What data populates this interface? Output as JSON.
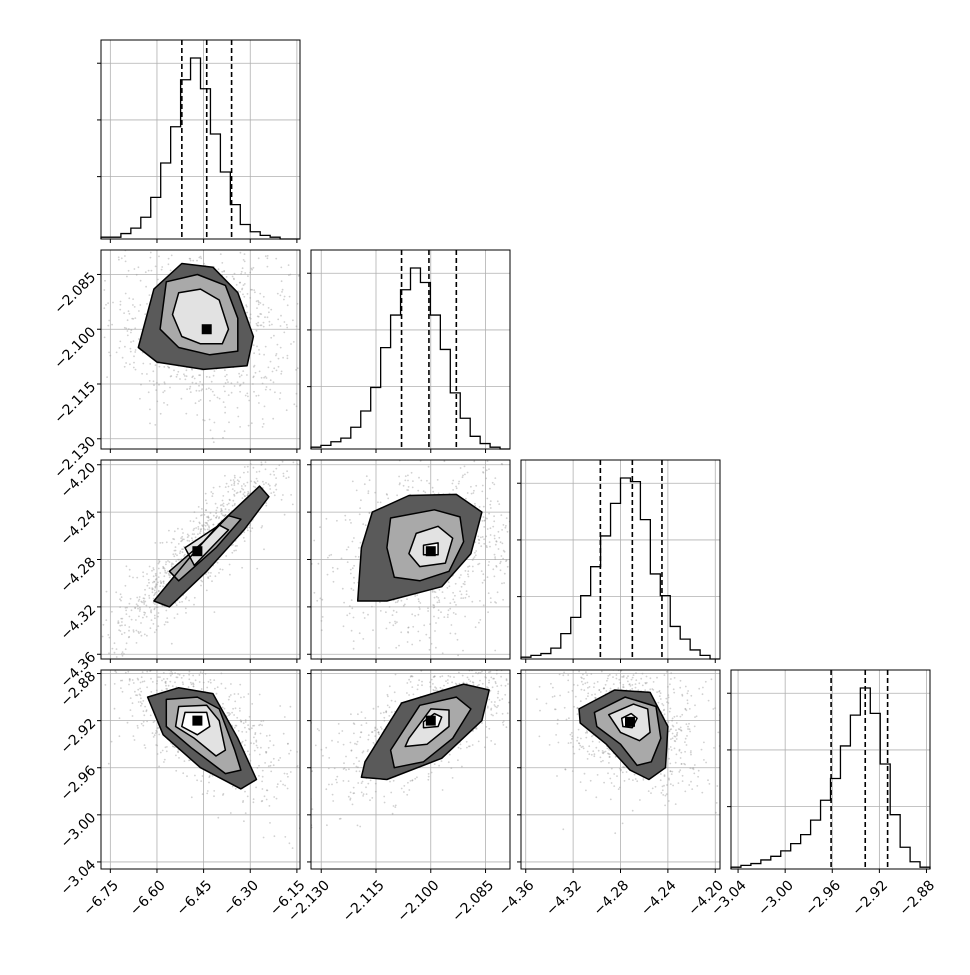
{
  "chart_data": {
    "type": "corner",
    "parameters": [
      {
        "range": [
          -6.78,
          -6.14
        ],
        "ticks": [
          "−6.75",
          "−6.60",
          "−6.45",
          "−6.30",
          "−6.15"
        ],
        "tick_values": [
          -6.75,
          -6.6,
          -6.45,
          -6.3,
          -6.15
        ],
        "quantiles": [
          -6.52,
          -6.44,
          -6.36
        ],
        "histogram": {
          "edges_start": -6.78,
          "bin_width": 0.032,
          "counts": [
            1,
            1,
            3,
            6,
            12,
            23,
            42,
            62,
            88,
            100,
            83,
            58,
            37,
            19,
            8,
            4,
            2,
            1,
            0,
            0
          ]
        }
      },
      {
        "range": [
          -2.1328,
          -2.0783
        ],
        "ticks": [
          "−2.130",
          "−2.115",
          "−2.100",
          "−2.085"
        ],
        "tick_values": [
          -2.13,
          -2.115,
          -2.1,
          -2.085
        ],
        "quantiles": [
          -2.108,
          -2.1005,
          -2.093
        ],
        "histogram": {
          "edges_start": -2.1328,
          "bin_width": 0.002725,
          "counts": [
            1,
            2,
            4,
            6,
            12,
            21,
            34,
            56,
            74,
            88,
            100,
            92,
            74,
            55,
            31,
            17,
            7,
            3,
            1,
            0
          ]
        }
      },
      {
        "range": [
          -4.364,
          -4.196
        ],
        "ticks": [
          "−4.36",
          "−4.32",
          "−4.28",
          "−4.24",
          "−4.20"
        ],
        "tick_values": [
          -4.36,
          -4.32,
          -4.28,
          -4.24,
          -4.2
        ],
        "quantiles": [
          -4.297,
          -4.27,
          -4.245
        ],
        "histogram": {
          "edges_start": -4.364,
          "bin_width": 0.0084,
          "counts": [
            1,
            2,
            3,
            6,
            14,
            23,
            35,
            51,
            68,
            86,
            100,
            98,
            77,
            47,
            35,
            18,
            11,
            5,
            2,
            0
          ]
        }
      },
      {
        "range": [
          -3.046,
          -2.877
        ],
        "ticks": [
          "−3.04",
          "−3.00",
          "−2.96",
          "−2.92",
          "−2.88"
        ],
        "tick_values": [
          -3.04,
          -3.0,
          -2.96,
          -2.92,
          -2.88
        ],
        "quantiles": [
          -2.961,
          -2.932,
          -2.913
        ],
        "histogram": {
          "edges_start": -3.046,
          "bin_width": 0.00845,
          "counts": [
            1,
            2,
            3,
            5,
            7,
            10,
            14,
            19,
            27,
            38,
            50,
            68,
            85,
            100,
            86,
            58,
            30,
            12,
            4,
            1
          ]
        }
      }
    ],
    "pairs": [
      {
        "row": 1,
        "col": 0,
        "mean": [
          -6.44,
          -2.1
        ],
        "contours": [
          [
            -6.53,
            -2.09,
            -6.46,
            -2.089,
            -6.4,
            -2.092,
            -6.37,
            -2.1,
            -6.39,
            -2.104,
            -6.46,
            -2.104,
            -6.52,
            -2.102,
            -6.55,
            -2.096
          ],
          [
            -6.57,
            -2.087,
            -6.47,
            -2.085,
            -6.38,
            -2.088,
            -6.34,
            -2.097,
            -6.34,
            -2.106,
            -6.43,
            -2.107,
            -6.53,
            -2.105,
            -6.59,
            -2.1
          ],
          [
            -6.61,
            -2.089,
            -6.52,
            -2.082,
            -6.42,
            -2.083,
            -6.34,
            -2.09,
            -6.29,
            -2.102,
            -6.31,
            -2.11,
            -6.45,
            -2.111,
            -6.6,
            -2.109,
            -6.66,
            -2.105
          ]
        ]
      },
      {
        "row": 2,
        "col": 0,
        "mean": [
          -6.47,
          -4.273
        ],
        "contours": [
          [
            -6.51,
            -4.27,
            -6.4,
            -4.251,
            -6.37,
            -4.255,
            -6.48,
            -4.285
          ],
          [
            -6.56,
            -4.29,
            -6.45,
            -4.265,
            -6.37,
            -4.243,
            -6.33,
            -4.246,
            -6.41,
            -4.27,
            -6.53,
            -4.298
          ],
          [
            -6.61,
            -4.315,
            -6.5,
            -4.28,
            -6.4,
            -4.25,
            -6.27,
            -4.218,
            -6.24,
            -4.227,
            -6.32,
            -4.255,
            -6.44,
            -4.29,
            -6.56,
            -4.32
          ]
        ]
      },
      {
        "row": 2,
        "col": 1,
        "mean": [
          -2.1,
          -4.273
        ],
        "contours": [
          [
            -2.102,
            -4.268,
            -2.098,
            -4.266,
            -2.098,
            -4.276,
            -2.102,
            -4.276
          ],
          [
            -2.104,
            -4.258,
            -2.098,
            -4.252,
            -2.094,
            -4.262,
            -2.096,
            -4.283,
            -2.103,
            -4.286,
            -2.106,
            -4.275
          ],
          [
            -2.111,
            -4.245,
            -2.099,
            -4.238,
            -2.092,
            -4.244,
            -2.091,
            -4.265,
            -2.095,
            -4.29,
            -2.103,
            -4.298,
            -2.11,
            -4.295,
            -2.112,
            -4.27
          ],
          [
            -2.116,
            -4.24,
            -2.106,
            -4.226,
            -2.093,
            -4.225,
            -2.086,
            -4.24,
            -2.089,
            -4.275,
            -2.097,
            -4.303,
            -2.112,
            -4.315,
            -2.12,
            -4.315,
            -2.119,
            -4.27
          ]
        ]
      },
      {
        "row": 3,
        "col": 0,
        "mean": [
          -6.47,
          -2.92
        ],
        "contours": [
          [
            -6.51,
            -2.913,
            -6.44,
            -2.913,
            -6.43,
            -2.925,
            -6.47,
            -2.932,
            -6.52,
            -2.925
          ],
          [
            -6.53,
            -2.908,
            -6.44,
            -2.907,
            -6.4,
            -2.92,
            -6.38,
            -2.945,
            -6.41,
            -2.95,
            -6.48,
            -2.935,
            -6.54,
            -2.925
          ],
          [
            -6.57,
            -2.902,
            -6.47,
            -2.9,
            -6.4,
            -2.91,
            -6.35,
            -2.945,
            -6.33,
            -2.962,
            -6.38,
            -2.965,
            -6.49,
            -2.943,
            -6.57,
            -2.925
          ],
          [
            -6.63,
            -2.9,
            -6.53,
            -2.892,
            -6.42,
            -2.897,
            -6.34,
            -2.935,
            -6.28,
            -2.97,
            -6.33,
            -2.978,
            -6.46,
            -2.96,
            -6.58,
            -2.932
          ]
        ]
      },
      {
        "row": 3,
        "col": 1,
        "mean": [
          -2.1,
          -2.92
        ],
        "contours": [
          [
            -2.102,
            -2.921,
            -2.099,
            -2.914,
            -2.097,
            -2.917,
            -2.098,
            -2.925,
            -2.102,
            -2.926
          ],
          [
            -2.106,
            -2.935,
            -2.1,
            -2.91,
            -2.095,
            -2.911,
            -2.095,
            -2.925,
            -2.101,
            -2.94,
            -2.107,
            -2.942
          ],
          [
            -2.111,
            -2.945,
            -2.103,
            -2.907,
            -2.093,
            -2.9,
            -2.089,
            -2.91,
            -2.094,
            -2.935,
            -2.102,
            -2.955,
            -2.11,
            -2.96
          ],
          [
            -2.118,
            -2.955,
            -2.108,
            -2.905,
            -2.091,
            -2.889,
            -2.084,
            -2.894,
            -2.086,
            -2.92,
            -2.097,
            -2.952,
            -2.112,
            -2.97,
            -2.119,
            -2.968
          ]
        ]
      },
      {
        "row": 3,
        "col": 2,
        "mean": [
          -4.272,
          -2.921
        ],
        "contours": [
          [
            -4.279,
            -2.918,
            -4.271,
            -2.914,
            -4.266,
            -2.918,
            -4.27,
            -2.926,
            -4.278,
            -2.925
          ],
          [
            -4.29,
            -2.915,
            -4.269,
            -2.906,
            -4.257,
            -2.91,
            -4.255,
            -2.93,
            -4.264,
            -2.937,
            -4.28,
            -2.93
          ],
          [
            -4.302,
            -2.913,
            -4.276,
            -2.9,
            -4.25,
            -2.908,
            -4.246,
            -2.935,
            -4.254,
            -2.955,
            -4.266,
            -2.958,
            -4.28,
            -2.94,
            -4.3,
            -2.925
          ],
          [
            -4.315,
            -2.91,
            -4.285,
            -2.894,
            -4.255,
            -2.896,
            -4.24,
            -2.925,
            -4.242,
            -2.96,
            -4.256,
            -2.97,
            -4.272,
            -2.962,
            -4.292,
            -2.94,
            -4.314,
            -2.922
          ]
        ]
      }
    ]
  }
}
